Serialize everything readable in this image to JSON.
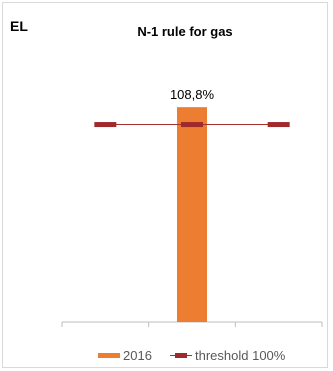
{
  "chart_data": {
    "type": "bar",
    "corner_label": "EL",
    "title": "N-1 rule for gas",
    "categories": [
      "",
      "",
      ""
    ],
    "series": [
      {
        "name": "2016",
        "type": "bar",
        "values": [
          null,
          108.8,
          null
        ],
        "color": "#ED7D31"
      },
      {
        "name": "threshold 100%",
        "type": "line",
        "values": [
          100,
          100,
          100
        ],
        "color": "#A5302F"
      }
    ],
    "data_labels": [
      "108,8%"
    ],
    "ylim": [
      0,
      115
    ],
    "grid": false,
    "legend_position": "bottom"
  }
}
